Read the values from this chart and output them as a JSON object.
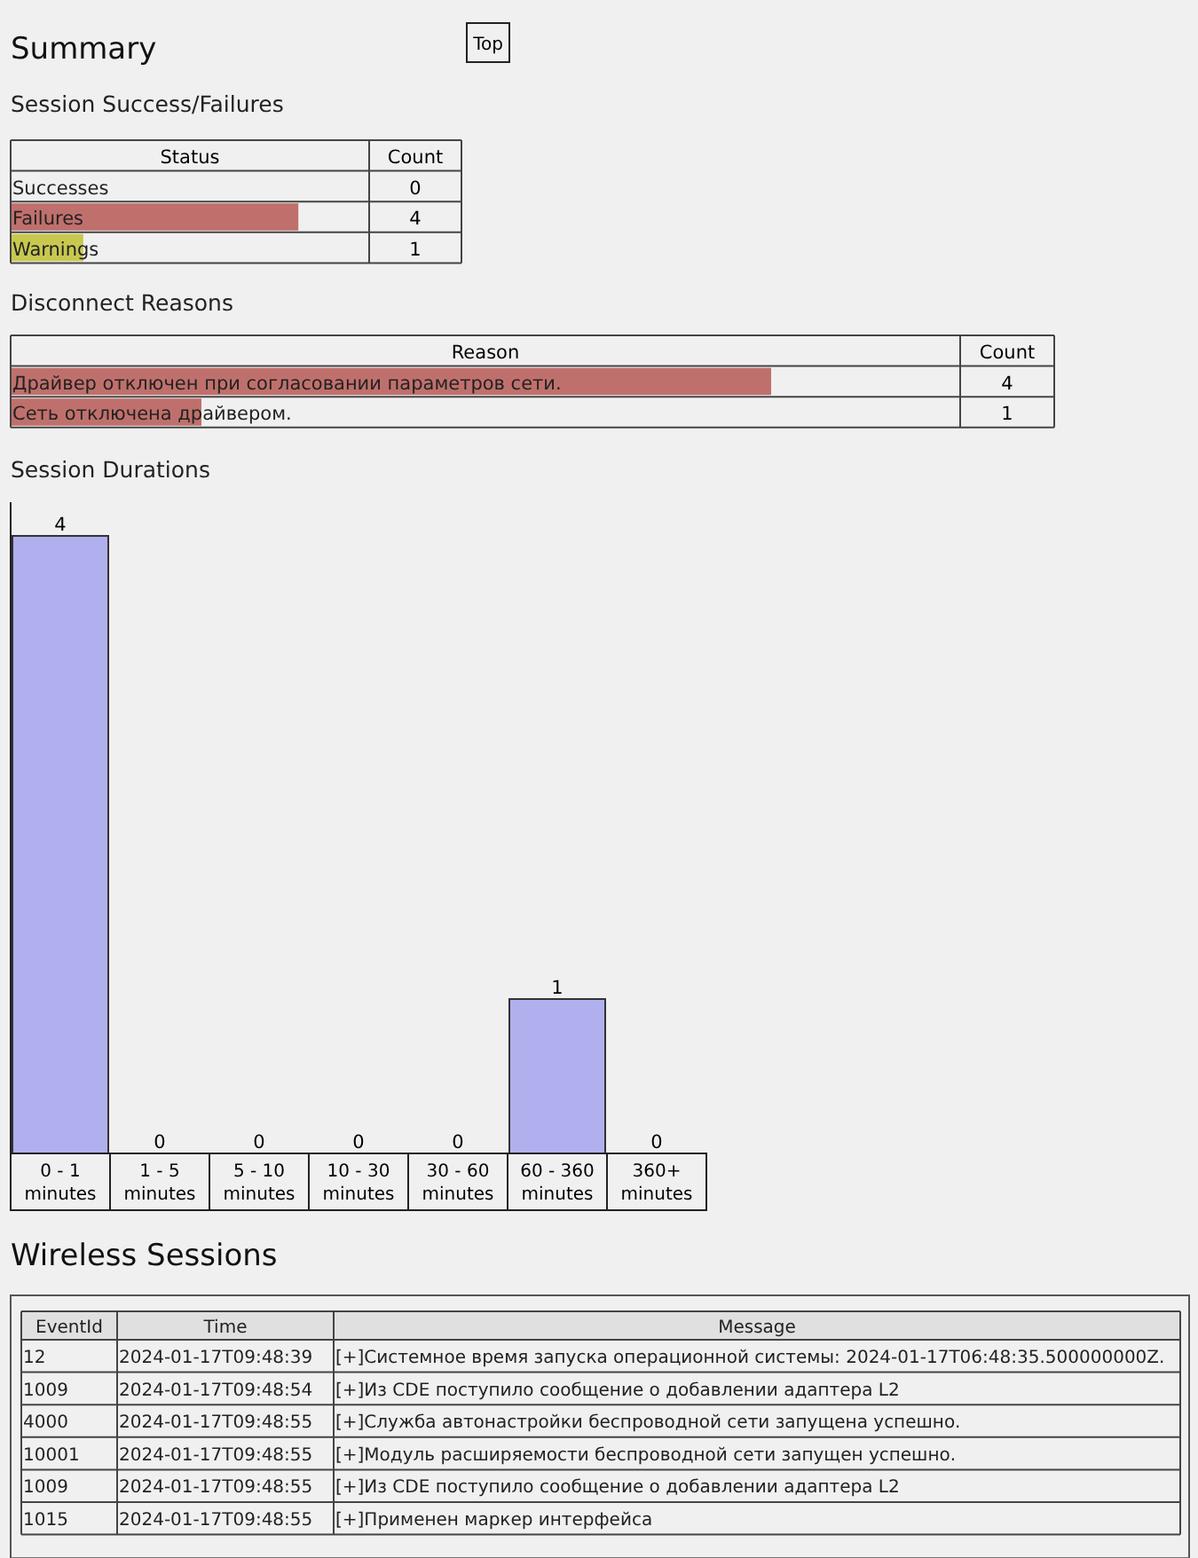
{
  "chart_data": [
    {
      "type": "bar",
      "orientation": "horizontal",
      "title": "Session Success/Failures",
      "annotations": [
        "Status",
        "Count",
        "Summary",
        "Top"
      ],
      "categories": [
        "Successes",
        "Failures",
        "Warnings"
      ],
      "values": [
        0,
        4,
        1
      ],
      "colors": [
        "#c0706c",
        "#c0706c",
        "#c8c850"
      ],
      "data_labels": true
    },
    {
      "type": "bar",
      "orientation": "horizontal",
      "title": "Disconnect Reasons",
      "annotations": [
        "Reason",
        "Count"
      ],
      "categories": [
        "Драйвер отключен при согласовании параметров сети.",
        "Сеть отключена драйвером."
      ],
      "values": [
        4,
        1
      ],
      "colors": [
        "#c0706c",
        "#c0706c"
      ],
      "data_labels": true
    },
    {
      "type": "bar",
      "title": "Session Durations",
      "categories": [
        "0 - 1 minutes",
        "1 - 5 minutes",
        "5 - 10 minutes",
        "10 - 30 minutes",
        "30 - 60 minutes",
        "60 - 360 minutes",
        "360+ minutes"
      ],
      "values": [
        4,
        0,
        0,
        0,
        0,
        1,
        0
      ],
      "color": "#b0b0ee",
      "data_labels": true
    },
    {
      "type": "other",
      "title": "Wireless Sessions",
      "annotations": [
        "EventId",
        "Time",
        "Message",
        "12",
        "2024-01-17T09:48:39",
        "[+]Системное время запуска операционной системы: 2024-01-17T06:48:35.500000000Z.",
        "1009",
        "2024-01-17T09:48:54",
        "[+]Из CDE поступило сообщение о добавлении адаптера L2",
        "4000",
        "2024-01-17T09:48:55",
        "[+]Служба автонастройки беспроводной сети запущена успешно.",
        "10001",
        "2024-01-17T09:48:55",
        "[+]Модуль расширяемости беспроводной сети запущен успешно.",
        "1009",
        "2024-01-17T09:48:55",
        "[+]Из CDE поступило сообщение о добавлении адаптера L2",
        "1015",
        "2024-01-17T09:48:55",
        "[+]Применен маркер интерфейса"
      ]
    }
  ]
}
